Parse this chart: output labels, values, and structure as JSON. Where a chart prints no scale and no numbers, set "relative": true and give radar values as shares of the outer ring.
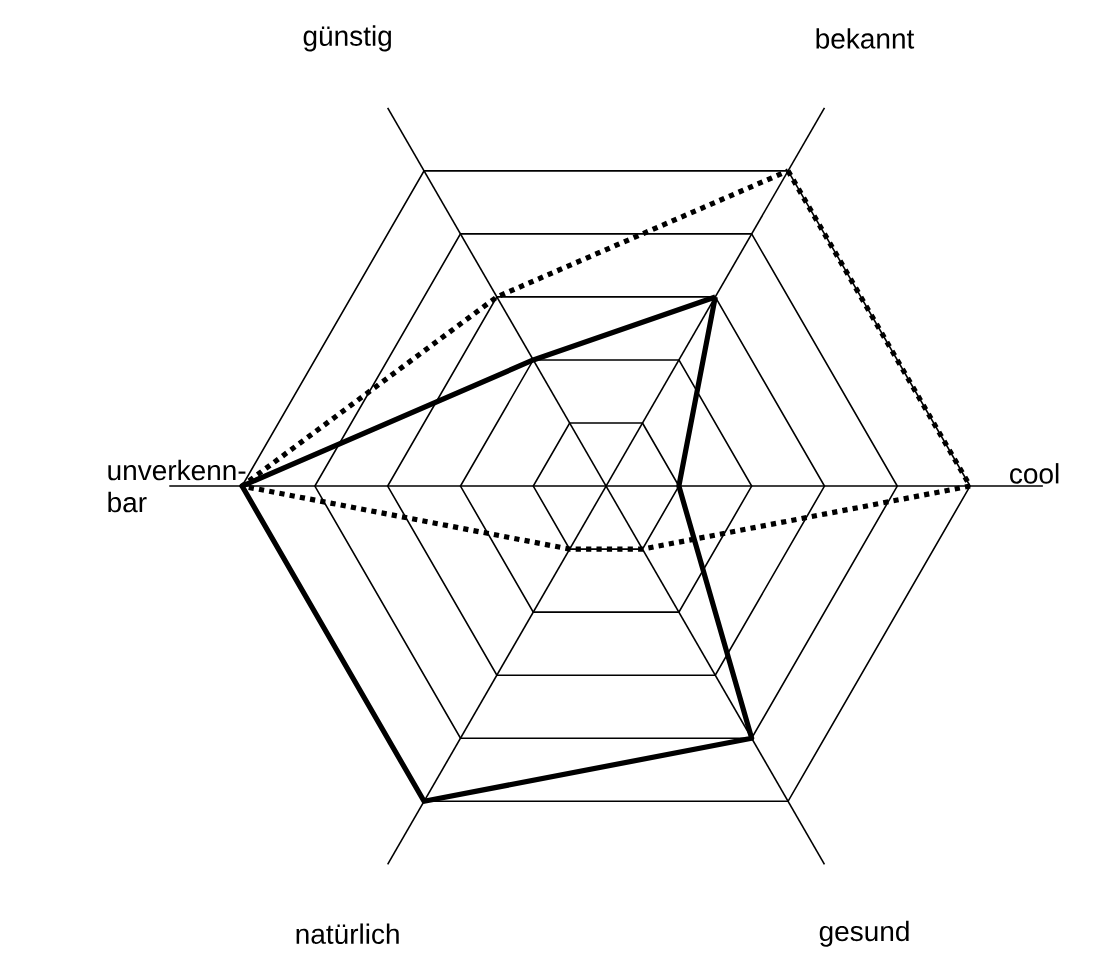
{
  "chart_data": {
    "type": "radar",
    "relative": true,
    "grid": true,
    "categories": [
      "bekannt",
      "cool",
      "gesund",
      "natürlich",
      "unverkenn-bar",
      "günstig"
    ],
    "series": [
      {
        "color": "#000000",
        "line_style": "solid",
        "values": [
          0.6,
          0.2,
          0.8,
          1,
          1,
          0.4
        ]
      },
      {
        "color": "#000000",
        "line_style": "dotted",
        "values": [
          1,
          1,
          0.2,
          0.2,
          1,
          0.6
        ]
      }
    ]
  }
}
